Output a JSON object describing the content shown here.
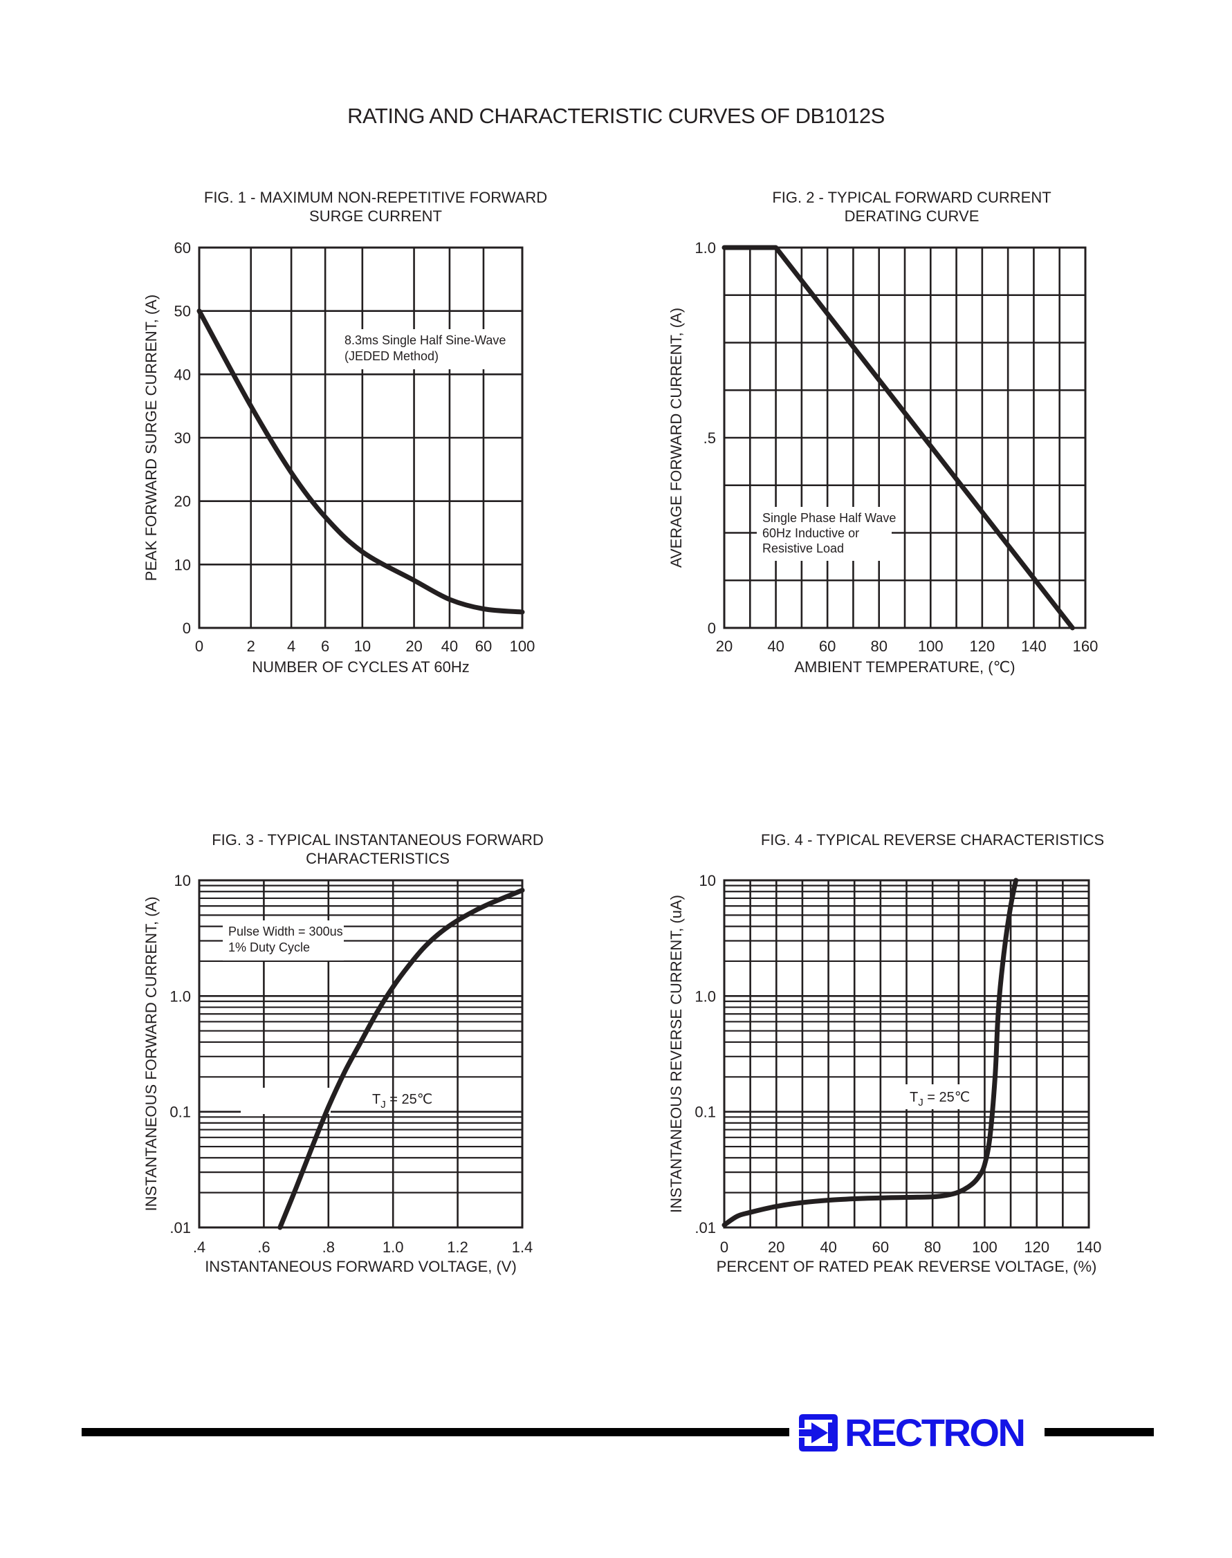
{
  "page": {
    "title": "RATING AND CHARACTERISTIC CURVES OF DB1012S"
  },
  "brand": {
    "name": "RECTRON",
    "color": "#1414e6"
  },
  "chart_data": [
    {
      "id": "fig1",
      "type": "line",
      "title": "FIG. 1 - MAXIMUM NON-REPETITIVE FORWARD SURGE CURRENT",
      "title_lines": [
        "FIG. 1 - MAXIMUM NON-REPETITIVE FORWARD",
        "SURGE CURRENT"
      ],
      "xlabel": "NUMBER OF CYCLES AT 60Hz",
      "ylabel": "PEAK FORWARD SURGE CURRENT, (A)",
      "x_scale": "categorical-log",
      "x_ticks": [
        "0",
        "2",
        "4",
        "6",
        "10",
        "20",
        "40",
        "60",
        "100"
      ],
      "y_ticks": [
        "0",
        "10",
        "20",
        "30",
        "40",
        "50",
        "60"
      ],
      "ylim": [
        0,
        60
      ],
      "grid": true,
      "annotation": [
        "8.3ms Single Half Sine-Wave",
        "(JEDED Method)"
      ],
      "series": [
        {
          "x": [
            "0",
            "2",
            "4",
            "6",
            "10",
            "20",
            "40",
            "60",
            "100"
          ],
          "values": [
            50,
            35,
            24.5,
            17.5,
            12,
            7.5,
            4.5,
            3,
            2.5
          ]
        }
      ]
    },
    {
      "id": "fig2",
      "type": "line",
      "title": "FIG. 2 - TYPICAL FORWARD CURRENT DERATING CURVE",
      "title_lines": [
        "FIG. 2 - TYPICAL FORWARD CURRENT",
        "DERATING CURVE"
      ],
      "xlabel": "AMBIENT TEMPERATURE, (℃)",
      "ylabel": "AVERAGE FORWARD CURRENT, (A)",
      "x_ticks": [
        "20",
        "40",
        "60",
        "80",
        "100",
        "120",
        "140",
        "160"
      ],
      "y_ticks": [
        "0",
        ".5",
        "1.0"
      ],
      "xlim": [
        20,
        160
      ],
      "ylim": [
        0,
        1.0
      ],
      "grid": true,
      "annotation": [
        "Single Phase Half Wave",
        "60Hz Inductive or",
        "Resistive Load"
      ],
      "series": [
        {
          "x": [
            20,
            40,
            155
          ],
          "values": [
            1.0,
            1.0,
            0
          ]
        }
      ]
    },
    {
      "id": "fig3",
      "type": "line",
      "title": "FIG. 3 - TYPICAL INSTANTANEOUS FORWARD CHARACTERISTICS",
      "title_lines": [
        "FIG. 3 - TYPICAL INSTANTANEOUS FORWARD",
        "CHARACTERISTICS"
      ],
      "xlabel": "INSTANTANEOUS FORWARD VOLTAGE, (V)",
      "ylabel": "INSTANTANEOUS FORWARD CURRENT, (A)",
      "y_scale": "log",
      "x_ticks": [
        ".4",
        ".6",
        ".8",
        "1.0",
        "1.2",
        "1.4"
      ],
      "y_ticks": [
        ".01",
        "0.1",
        "1.0",
        "10"
      ],
      "xlim": [
        0.4,
        1.4
      ],
      "ylim": [
        0.01,
        10
      ],
      "grid": true,
      "annotation": [
        "Pulse Width = 300us",
        "1% Duty Cycle"
      ],
      "condition": {
        "prefix": "T",
        "subscript": "J",
        "suffix": " = 25℃"
      },
      "series": [
        {
          "x": [
            0.65,
            0.7,
            0.75,
            0.8,
            0.85,
            0.9,
            0.95,
            1.0,
            1.05,
            1.1,
            1.15,
            1.2,
            1.25,
            1.3,
            1.35,
            1.4
          ],
          "values": [
            0.01,
            0.022,
            0.05,
            0.11,
            0.22,
            0.4,
            0.72,
            1.2,
            1.85,
            2.7,
            3.6,
            4.5,
            5.4,
            6.3,
            7.2,
            8.2
          ]
        }
      ]
    },
    {
      "id": "fig4",
      "type": "line",
      "title": "FIG. 4 - TYPICAL REVERSE CHARACTERISTICS",
      "title_lines": [
        "FIG. 4 - TYPICAL REVERSE CHARACTERISTICS"
      ],
      "xlabel": "PERCENT OF RATED PEAK REVERSE VOLTAGE, (%)",
      "ylabel": "INSTANTANEOUS REVERSE CURRENT, (uA)",
      "y_scale": "log",
      "x_ticks": [
        "0",
        "20",
        "40",
        "60",
        "80",
        "100",
        "120",
        "140"
      ],
      "y_ticks": [
        ".01",
        "0.1",
        "1.0",
        "10"
      ],
      "xlim": [
        0,
        140
      ],
      "ylim": [
        0.01,
        10
      ],
      "grid": true,
      "condition": {
        "prefix": "T",
        "subscript": "J",
        "suffix": " = 25℃"
      },
      "series": [
        {
          "x": [
            0,
            5,
            10,
            20,
            30,
            40,
            50,
            60,
            70,
            80,
            85,
            90,
            95,
            98,
            100,
            102,
            104,
            105,
            106,
            108,
            110,
            112
          ],
          "values": [
            0.0105,
            0.0125,
            0.0135,
            0.0152,
            0.0164,
            0.0172,
            0.0177,
            0.018,
            0.0182,
            0.0184,
            0.0189,
            0.0202,
            0.0235,
            0.028,
            0.035,
            0.06,
            0.2,
            0.6,
            1.2,
            3.0,
            6.0,
            10
          ]
        }
      ]
    }
  ]
}
